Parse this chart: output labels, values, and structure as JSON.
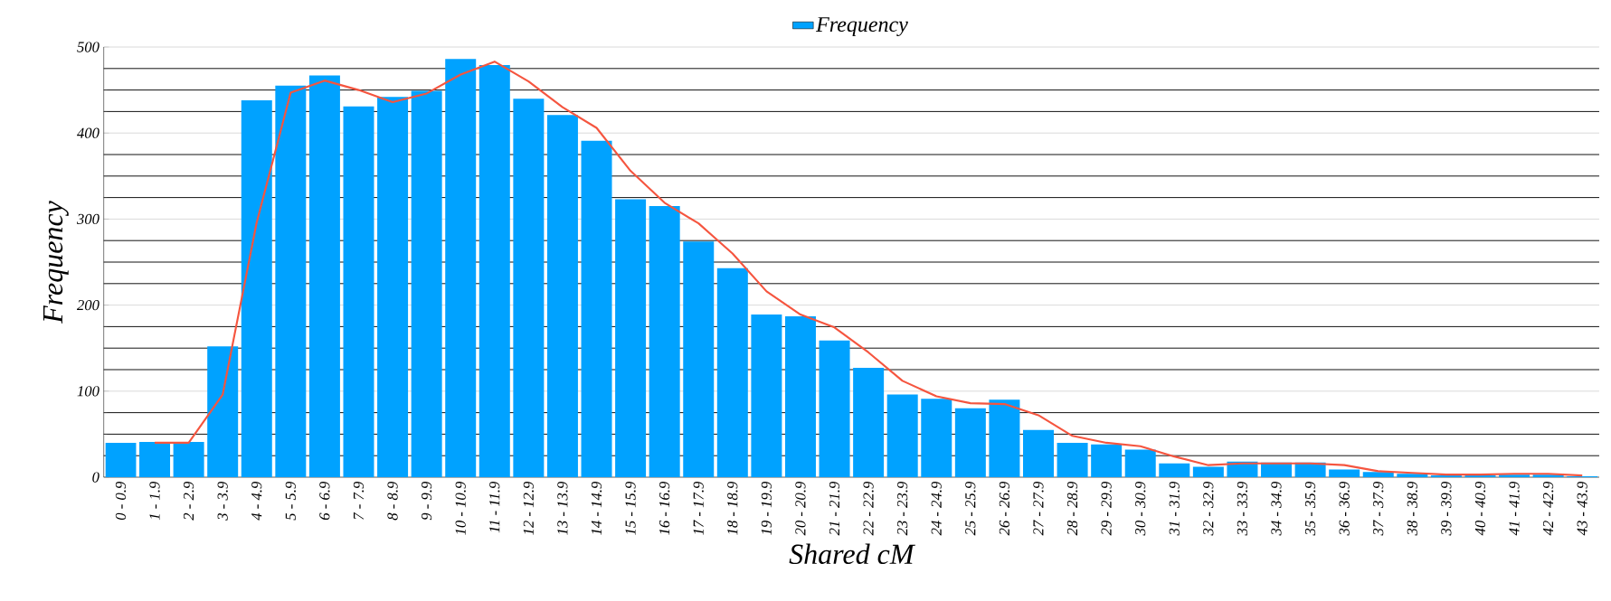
{
  "chart_data": {
    "type": "bar",
    "xlabel": "Shared cM",
    "ylabel": "Frequency",
    "legend": "top",
    "grid": true,
    "categories": [
      "0 - 0.9",
      "1 - 1.9",
      "2 - 2.9",
      "3 - 3.9",
      "4 - 4.9",
      "5 - 5.9",
      "6 - 6.9",
      "7 - 7.9",
      "8 - 8.9",
      "9 - 9.9",
      "10 - 10.9",
      "11 - 11.9",
      "12 - 12.9",
      "13 - 13.9",
      "14 - 14.9",
      "15 - 15.9",
      "16 - 16.9",
      "17 - 17.9",
      "18 - 18.9",
      "19 - 19.9",
      "20 - 20.9",
      "21 - 21.9",
      "22 - 22.9",
      "23 - 23.9",
      "24 - 24.9",
      "25 - 25.9",
      "26 - 26.9",
      "27 - 27.9",
      "28 - 28.9",
      "29 - 29.9",
      "30 - 30.9",
      "31 - 31.9",
      "32 - 32.9",
      "33 - 33.9",
      "34 - 34.9",
      "35 - 35.9",
      "36 - 36.9",
      "37 - 37.9",
      "38 - 38.9",
      "39 - 39.9",
      "40 - 40.9",
      "41 - 41.9",
      "42 - 42.9",
      "43 - 43.9"
    ],
    "ylim": [
      0,
      500
    ],
    "yticks": [
      0,
      100,
      200,
      300,
      400,
      500
    ],
    "series": [
      {
        "name": "Frequency",
        "color": "#00a2ff",
        "values": [
          40,
          41,
          41,
          152,
          438,
          455,
          467,
          431,
          442,
          449,
          486,
          479,
          440,
          421,
          391,
          323,
          315,
          274,
          243,
          189,
          187,
          159,
          127,
          96,
          91,
          80,
          90,
          55,
          40,
          38,
          32,
          16,
          12,
          18,
          17,
          17,
          9,
          6,
          4,
          2,
          2,
          3,
          3,
          1
        ]
      },
      {
        "type": "line",
        "color": "#f5553f",
        "values": [
          null,
          40,
          40,
          96,
          296,
          447,
          461,
          450,
          436,
          446,
          468,
          483,
          460,
          430,
          406,
          356,
          319,
          295,
          260,
          216,
          189,
          174,
          145,
          112,
          94,
          86,
          85,
          72,
          48,
          40,
          36,
          24,
          14,
          16,
          16,
          16,
          14,
          7,
          5,
          3,
          3,
          4,
          4,
          2
        ]
      }
    ]
  }
}
